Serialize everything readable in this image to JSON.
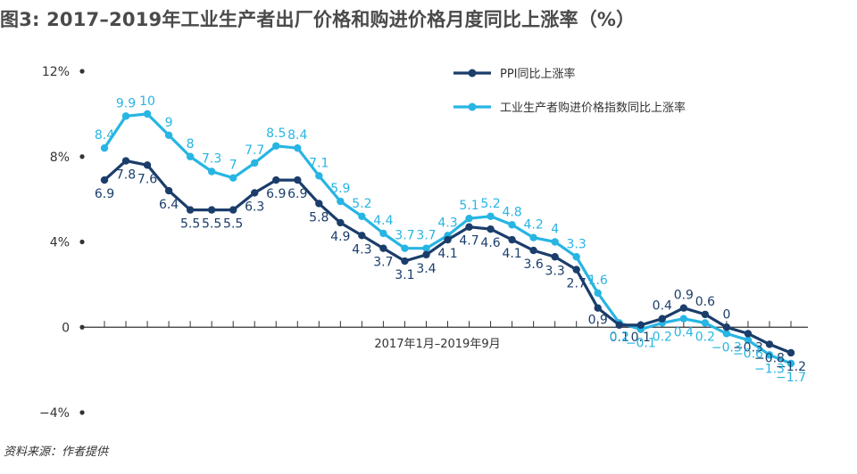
{
  "title": "图3: 2017–2019年工业生产者出厂价格和购进价格月度同比上涨率（%）",
  "source": "资料来源：作者提供",
  "colors": {
    "ppi": "#1b3d6b",
    "purchase": "#27b5e3"
  },
  "chart_data": {
    "type": "line",
    "xlabel": "2017年1月–2019年9月",
    "ylim": [
      -4,
      12
    ],
    "yticks": [
      -4,
      0,
      4,
      8,
      12
    ],
    "ytick_labels": [
      "−4%",
      "0",
      "4%",
      "8%",
      "12%"
    ],
    "legend": "top-right",
    "grid": false,
    "series": [
      {
        "name": "PPI同比上涨率",
        "label_text": [
          "6.9",
          "7.8",
          "7.6",
          "6.4",
          "5.5",
          "5.5",
          "5.5",
          "6.3",
          "6.9",
          "6.9",
          "5.8",
          "4.9",
          "4.3",
          "3.7",
          "3.1",
          "3.4",
          "4.1",
          "4.7",
          "4.6",
          "4.1",
          "3.6",
          "3.3",
          "2.7",
          "0.9",
          "0.1",
          "0.1",
          "0.4",
          "0.9",
          "0.6",
          "0",
          "−0.3",
          "−0.8",
          "−1.2"
        ],
        "values": [
          6.9,
          7.8,
          7.6,
          6.4,
          5.5,
          5.5,
          5.5,
          6.3,
          6.9,
          6.9,
          5.8,
          4.9,
          4.3,
          3.7,
          3.1,
          3.4,
          4.1,
          4.7,
          4.6,
          4.1,
          3.6,
          3.3,
          2.7,
          0.9,
          0.1,
          0.1,
          0.4,
          0.9,
          0.6,
          0,
          -0.3,
          -0.8,
          -1.2
        ]
      },
      {
        "name": "工业生产者购进价格指数同比上涨率",
        "label_text": [
          "8.4",
          "9.9",
          "10",
          "9",
          "8",
          "7.3",
          "7",
          "7.7",
          "8.5",
          "8.4",
          "7.1",
          "5.9",
          "5.2",
          "4.4",
          "3.7",
          "3.7",
          "4.3",
          "5.1",
          "5.2",
          "4.8",
          "4.2",
          "4",
          "3.3",
          "1.6",
          "0.2",
          "−0.1",
          "0.2",
          "0.4",
          "0.2",
          "−0.3",
          "−0.6",
          "−1.3",
          "−1.7"
        ],
        "values": [
          8.4,
          9.9,
          10,
          9,
          8,
          7.3,
          7,
          7.7,
          8.5,
          8.4,
          7.1,
          5.9,
          5.2,
          4.4,
          3.7,
          3.7,
          4.3,
          5.1,
          5.2,
          4.8,
          4.2,
          4,
          3.3,
          1.6,
          0.2,
          -0.1,
          0.2,
          0.4,
          0.2,
          -0.3,
          -0.6,
          -1.3,
          -1.7
        ]
      }
    ]
  }
}
